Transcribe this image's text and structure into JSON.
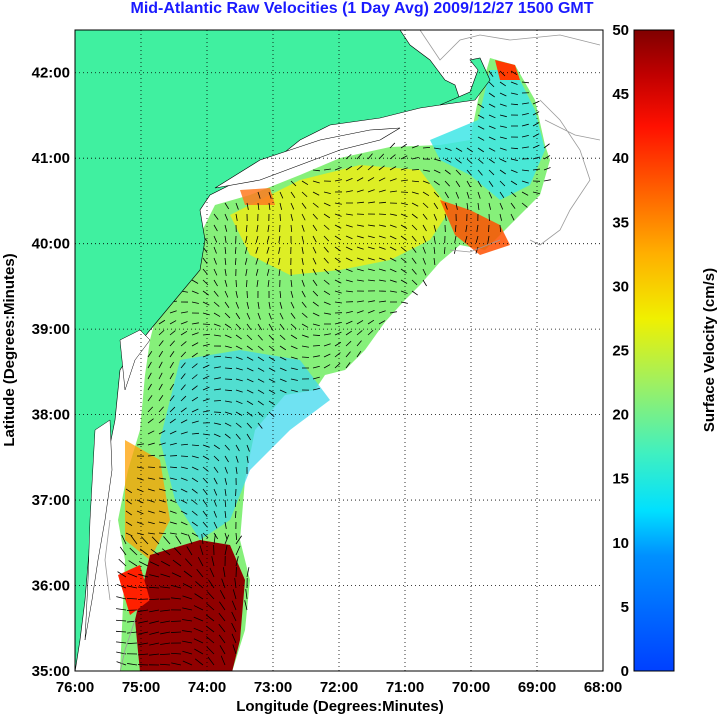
{
  "title": "Mid-Atlantic Raw Velocities (1 Day Avg) 2009/12/27 1500 GMT",
  "x_axis": {
    "label": "Longitude (Degrees:Minutes)",
    "ticks": [
      "76:00",
      "75:00",
      "74:00",
      "73:00",
      "72:00",
      "71:00",
      "70:00",
      "69:00",
      "68:00"
    ]
  },
  "y_axis": {
    "label": "Latitude (Degrees:Minutes)",
    "ticks": [
      "35:00",
      "36:00",
      "37:00",
      "38:00",
      "39:00",
      "40:00",
      "41:00",
      "42:00"
    ]
  },
  "colorbar": {
    "label": "Surface Velocity (cm/s)",
    "ticks": [
      "0",
      "5",
      "10",
      "15",
      "20",
      "25",
      "30",
      "35",
      "40",
      "45",
      "50"
    ],
    "range": [
      0,
      50
    ],
    "colormap": "jet"
  },
  "colors": {
    "land": "#40f0a0",
    "title": "#1a1aff",
    "grid": "#000000",
    "coastline": "#9a9a9a"
  },
  "map": {
    "lon_range": [
      -76,
      -68
    ],
    "lat_range": [
      35,
      42.5
    ],
    "grid": "dotted"
  }
}
